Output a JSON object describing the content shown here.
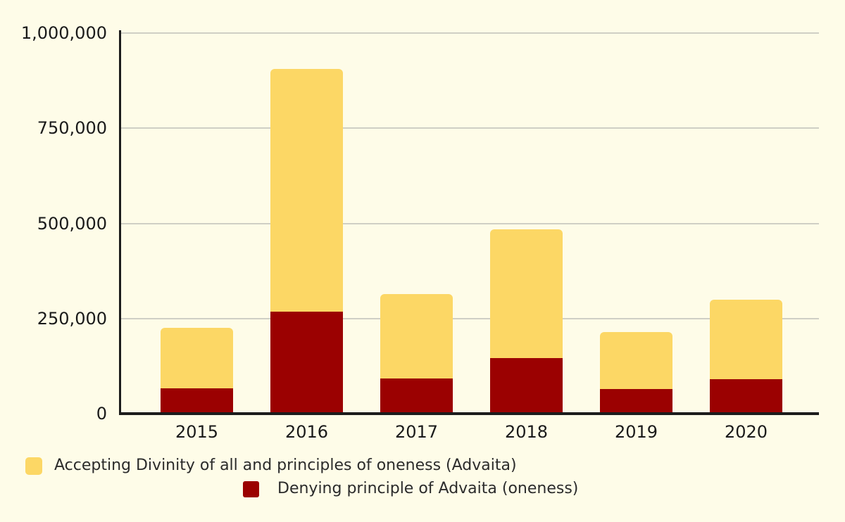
{
  "chart_data": {
    "type": "bar",
    "stacked": true,
    "title": "",
    "xlabel": "",
    "ylabel": "",
    "categories": [
      "2015",
      "2016",
      "2017",
      "2018",
      "2019",
      "2020"
    ],
    "series": [
      {
        "name": "Accepting Divinity of all and principles of oneness (Advaita)",
        "color": "#FCD765",
        "values": [
          159000,
          638000,
          222000,
          338000,
          150000,
          209000
        ]
      },
      {
        "name": "Denying principle of Advaita (oneness)",
        "color": "#9B0101",
        "values": [
          66000,
          268000,
          92000,
          146000,
          64000,
          90000
        ]
      }
    ],
    "stack_totals": [
      225000,
      906000,
      314000,
      484000,
      214000,
      299000
    ],
    "ylim": [
      0,
      1000000
    ],
    "yticks": [
      0,
      250000,
      500000,
      750000,
      1000000
    ],
    "ytick_labels": [
      "0",
      "250,000",
      "500,000",
      "750,000",
      "1,000,000"
    ],
    "grid": true,
    "legend_position": "bottom"
  },
  "legend": {
    "items": [
      {
        "label": "Accepting Divinity of all and principles of oneness (Advaita)",
        "color": "#FCD765"
      },
      {
        "label": "Denying principle of Advaita (oneness)",
        "color": "#9B0101"
      }
    ]
  },
  "colors": {
    "background": "#FEFCE8",
    "gridline": "#CFCFC5",
    "axis": "#1C1C1C",
    "tick_text": "#1A1A1A",
    "legend_text": "#2B2B2B",
    "accepting": "#FCD765",
    "denying": "#9B0101"
  }
}
